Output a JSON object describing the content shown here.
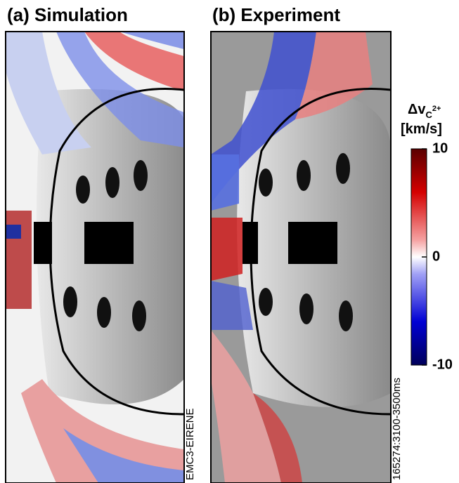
{
  "panels": [
    {
      "title": "(a) Simulation",
      "caption": "EMC3-EIRENE"
    },
    {
      "title": "(b) Experiment",
      "caption": "165274:3100-3500ms"
    }
  ],
  "colorbar": {
    "label": "Δv",
    "subscript": "C",
    "superscript": "2+",
    "unit": "[km/s]",
    "lim": [
      -10,
      10
    ],
    "ticks": [
      10,
      0,
      -10
    ]
  }
}
